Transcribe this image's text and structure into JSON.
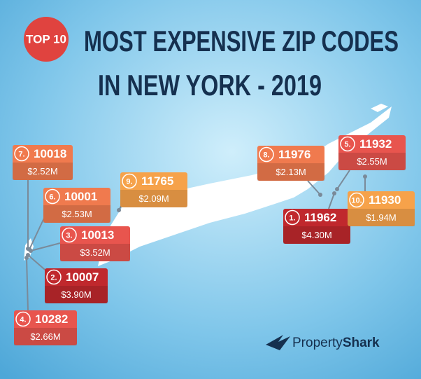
{
  "badge": "TOP 10",
  "title": {
    "line1": "MOST EXPENSIVE ZIP CODES",
    "line2": "IN NEW YORK - 2019"
  },
  "items": [
    {
      "rank": "7.",
      "zip": "10018",
      "price": "$2.52M"
    },
    {
      "rank": "6.",
      "zip": "10001",
      "price": "$2.53M"
    },
    {
      "rank": "3.",
      "zip": "10013",
      "price": "$3.52M"
    },
    {
      "rank": "2.",
      "zip": "10007",
      "price": "$3.90M"
    },
    {
      "rank": "4.",
      "zip": "10282",
      "price": "$2.66M"
    },
    {
      "rank": "9.",
      "zip": "11765",
      "price": "$2.09M"
    },
    {
      "rank": "8.",
      "zip": "11976",
      "price": "$2.13M"
    },
    {
      "rank": "5.",
      "zip": "11932",
      "price": "$2.55M"
    },
    {
      "rank": "1.",
      "zip": "11962",
      "price": "$4.30M"
    },
    {
      "rank": "10.",
      "zip": "11930",
      "price": "$1.94M"
    }
  ],
  "logo": {
    "part1": "Property",
    "part2": "Shark"
  }
}
